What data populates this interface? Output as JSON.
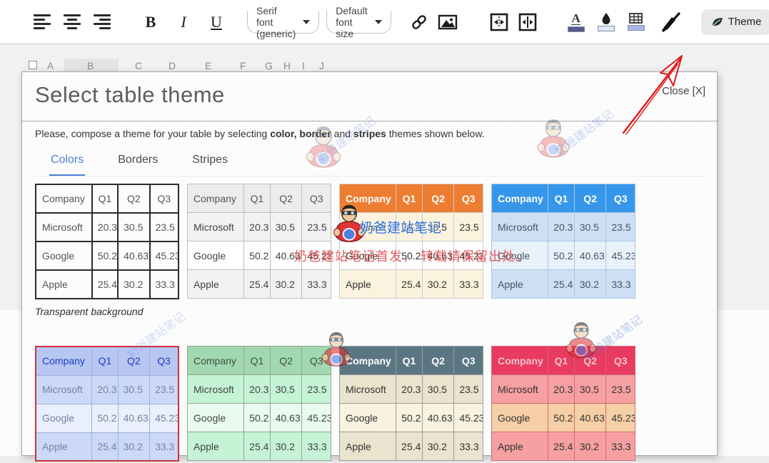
{
  "toolbar": {
    "align_left": "align-left",
    "align_center": "align-center",
    "align_right": "align-right",
    "bold_label": "B",
    "italic_label": "I",
    "underline_label": "U",
    "font_family_value": "Serif font (generic)",
    "font_size_value": "Default font size",
    "theme_button_label": "Theme",
    "text_color_swatch": "#575a8f",
    "fill_color_swatch": "#dbe7f8",
    "table_color_swatch": "#a9b7ef"
  },
  "sheet": {
    "columns": [
      "A",
      "B",
      "C",
      "D",
      "E",
      "F",
      "G",
      "H",
      "I",
      "J"
    ],
    "selected_column": "B"
  },
  "dialog": {
    "title": "Select table theme",
    "close_label": "Close [X]",
    "description": {
      "prefix": "Please, compose a theme for your table by selecting ",
      "bold1": "color, border",
      "mid": " and ",
      "bold2": "stripes",
      "suffix": " themes shown below."
    },
    "tabs": [
      {
        "label": "Colors",
        "active": true
      },
      {
        "label": "Borders",
        "active": false
      },
      {
        "label": "Stripes",
        "active": false
      }
    ],
    "table_preview": {
      "header": [
        "Company",
        "Q1",
        "Q2",
        "Q3"
      ],
      "rows": [
        [
          "Microsoft",
          "20.3",
          "30.5",
          "23.5"
        ],
        [
          "Google",
          "50.2",
          "40.63",
          "45.23"
        ],
        [
          "Apple",
          "25.4",
          "30.2",
          "33.3"
        ]
      ]
    },
    "themes": [
      {
        "id": "transparent",
        "caption": "Transparent background",
        "selected": false,
        "header_bg": "transparent",
        "header_fg": "#555555",
        "header_bold": false,
        "row_odd_bg": "transparent",
        "row_even_bg": "transparent",
        "border_color": "#2b2b2b",
        "border_width": "2px",
        "text_color": "#555555"
      },
      {
        "id": "light-gray",
        "selected": false,
        "header_bg": "#ececec",
        "header_fg": "#555555",
        "header_bold": false,
        "row_odd_bg": "#f2f2f2",
        "row_even_bg": "#ffffff",
        "border_color": "#bdbdbd",
        "border_width": "1px",
        "text_color": "#444444"
      },
      {
        "id": "orange",
        "selected": false,
        "header_bg": "#ed7d31",
        "header_fg": "#ffffff",
        "header_bold": true,
        "row_odd_bg": "#fbf3dd",
        "row_even_bg": "#ffffff",
        "border_color": "#cccccc",
        "border_width": "1px",
        "text_color": "#333333"
      },
      {
        "id": "blue",
        "selected": false,
        "header_bg": "#3697ea",
        "header_fg": "#ffffff",
        "header_bold": true,
        "row_odd_bg": "#cfdff3",
        "row_even_bg": "#e9f1fa",
        "border_color": "#a8c6e8",
        "border_width": "1px",
        "text_color": "#445566"
      },
      {
        "id": "periwinkle",
        "selected": true,
        "outer_border": "#d03040",
        "header_bg": "#b7c7f2",
        "header_fg": "#1c3cc2",
        "header_bold": false,
        "row_odd_bg": "#cbd8f7",
        "row_even_bg": "#e9effc",
        "border_color": "#9fb0dd",
        "border_width": "1px",
        "text_color": "#76849f"
      },
      {
        "id": "green",
        "selected": false,
        "header_bg": "#a2d8b0",
        "header_fg": "#3f4e45",
        "header_bold": false,
        "row_odd_bg": "#c5f3d5",
        "row_even_bg": "#e7fbee",
        "border_color": "#93a398",
        "border_width": "1px",
        "text_color": "#444444"
      },
      {
        "id": "slate",
        "selected": false,
        "header_bg": "#5b7683",
        "header_fg": "#ffffff",
        "header_bold": true,
        "row_odd_bg": "#eae3cd",
        "row_even_bg": "#f8f2de",
        "border_color": "#999b9d",
        "border_width": "1px",
        "text_color": "#333333"
      },
      {
        "id": "red",
        "selected": false,
        "header_bg": "#e93a5f",
        "header_fg": "#f6c3cc",
        "header_bold": true,
        "row_odd_bg": "#f6a0a2",
        "row_even_bg": "#f6cfa6",
        "border_color": "#d06a72",
        "border_width": "1px",
        "text_color": "#333333"
      }
    ]
  },
  "watermark": {
    "brand": "奶爸建站笔记",
    "notice": "奶爸建站笔记首发， 转载请保留出处。"
  },
  "colors": {
    "tab_accent": "#4a7fd4",
    "arrow_red": "#e11818",
    "selected_theme_border": "#d03040"
  }
}
